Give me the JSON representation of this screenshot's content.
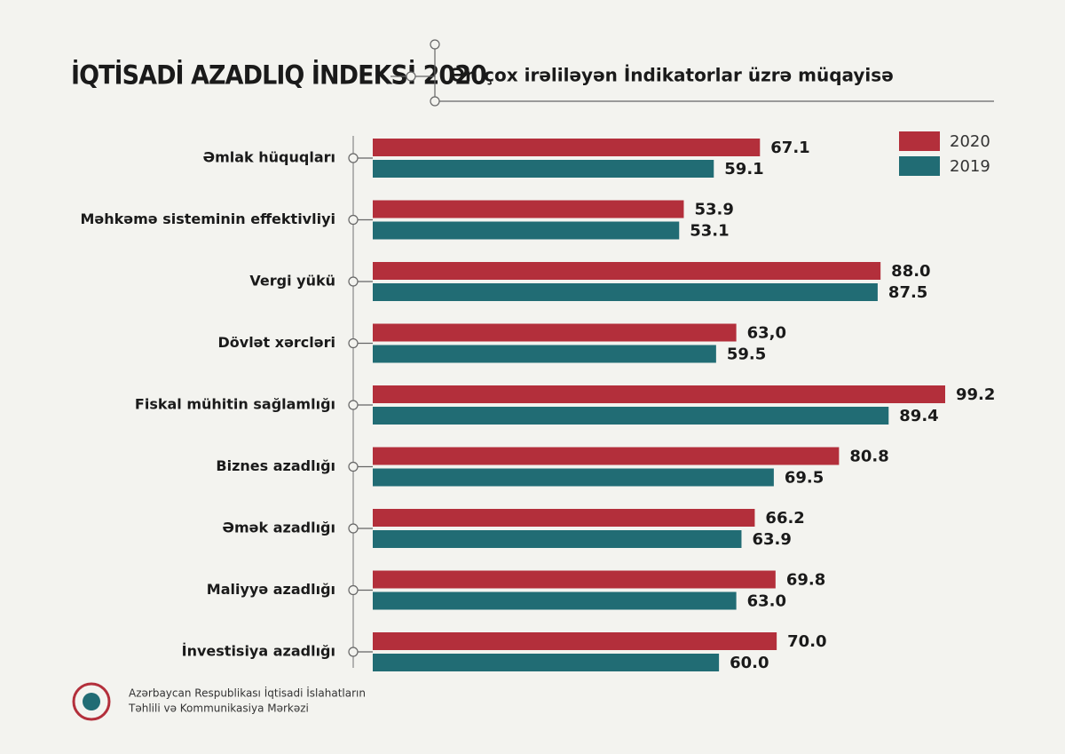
{
  "chart_data": {
    "type": "bar",
    "orientation": "horizontal",
    "title": "İQTİSADİ AZADLIQ İNDEKSİ 2020",
    "subtitle": "Ən çox irəliləyən İndikatorlar üzrə müqayisə",
    "categories": [
      "Əmlak hüquqları",
      "Məhkəmə sisteminin effektivliyi",
      "Vergi yükü",
      "Dövlət xərcləri",
      "Fiskal mühitin sağlamlığı",
      "Biznes azadlığı",
      "Əmək azadlığı",
      "Maliyyə azadlığı",
      "İnvestisiya azadlığı"
    ],
    "series": [
      {
        "name": "2020",
        "color": "#b32f3b",
        "values": [
          67.1,
          53.9,
          88.0,
          63.0,
          99.2,
          80.8,
          66.2,
          69.8,
          70.0
        ],
        "value_labels": [
          "67.1",
          "53.9",
          "88.0",
          "63,0",
          "99.2",
          "80.8",
          "66.2",
          "69.8",
          "70.0"
        ]
      },
      {
        "name": "2019",
        "color": "#216c74",
        "values": [
          59.1,
          53.1,
          87.5,
          59.5,
          89.4,
          69.5,
          63.9,
          63.0,
          60.0
        ],
        "value_labels": [
          "59.1",
          "53.1",
          "87.5",
          "59.5",
          "89.4",
          "69.5",
          "63.9",
          "63.0",
          "60.0"
        ]
      }
    ],
    "legend": "top-right",
    "footer": [
      "Azərbaycan Respublikası İqtisadi İslahatların",
      "Təhlili və Kommunikasiya Mərkəzi"
    ]
  }
}
